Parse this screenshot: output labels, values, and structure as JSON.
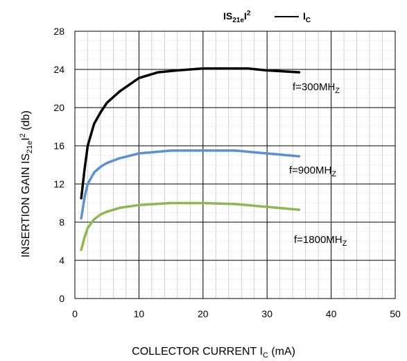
{
  "chart_data": {
    "type": "line",
    "title": {
      "gain_main": "IS",
      "gain_sub": "21e",
      "gain_tail": "I",
      "gain_sup": "2",
      "ic_main": "I",
      "ic_sub": "C"
    },
    "xlabel": {
      "main": "COLLECTOR CURRENT I",
      "sub": "C",
      "tail": " (mA)"
    },
    "ylabel": {
      "main": "INSERTION GAIN  IS",
      "sub": "21e",
      "tail": "I",
      "sup": "2",
      "unit": "  (db)"
    },
    "xlim": [
      0,
      50
    ],
    "ylim": [
      0,
      28
    ],
    "x_ticks": [
      0,
      10,
      20,
      30,
      40,
      50
    ],
    "y_ticks": [
      0,
      4,
      8,
      12,
      16,
      20,
      24,
      28
    ],
    "x_tick_labels": [
      "0",
      "10",
      "20",
      "30",
      "40",
      "50"
    ],
    "y_tick_labels": [
      "0",
      "4",
      "8",
      "12",
      "16",
      "20",
      "24",
      "28"
    ],
    "grid": true,
    "minor_grid": {
      "x_step": 2,
      "y_step": 1
    },
    "series": [
      {
        "color": "#000000",
        "annotation": {
          "main": "f=300MH",
          "sub": "Z"
        },
        "x": [
          1,
          1.5,
          2,
          3,
          4,
          5,
          7,
          10,
          13,
          16,
          20,
          24,
          27,
          30,
          35
        ],
        "y": [
          10.5,
          13.5,
          16,
          18.3,
          19.5,
          20.5,
          21.7,
          23.1,
          23.7,
          23.9,
          24.1,
          24.1,
          24.1,
          23.9,
          23.7
        ]
      },
      {
        "color": "#5b8fd6",
        "annotation": {
          "main": "f=900MH",
          "sub": "Z"
        },
        "x": [
          1,
          1.5,
          2,
          3,
          4,
          5,
          7,
          10,
          15,
          20,
          25,
          30,
          35
        ],
        "y": [
          8.4,
          10.6,
          12,
          13.2,
          13.8,
          14.2,
          14.7,
          15.2,
          15.5,
          15.5,
          15.5,
          15.2,
          14.9
        ]
      },
      {
        "color": "#8db84e",
        "annotation": {
          "main": "f=1800MH",
          "sub": "Z"
        },
        "x": [
          1,
          1.5,
          2,
          3,
          4,
          5,
          7,
          10,
          15,
          20,
          25,
          30,
          35
        ],
        "y": [
          5.1,
          6.4,
          7.4,
          8.3,
          8.8,
          9.1,
          9.5,
          9.8,
          10,
          10,
          9.9,
          9.6,
          9.3
        ]
      }
    ]
  }
}
